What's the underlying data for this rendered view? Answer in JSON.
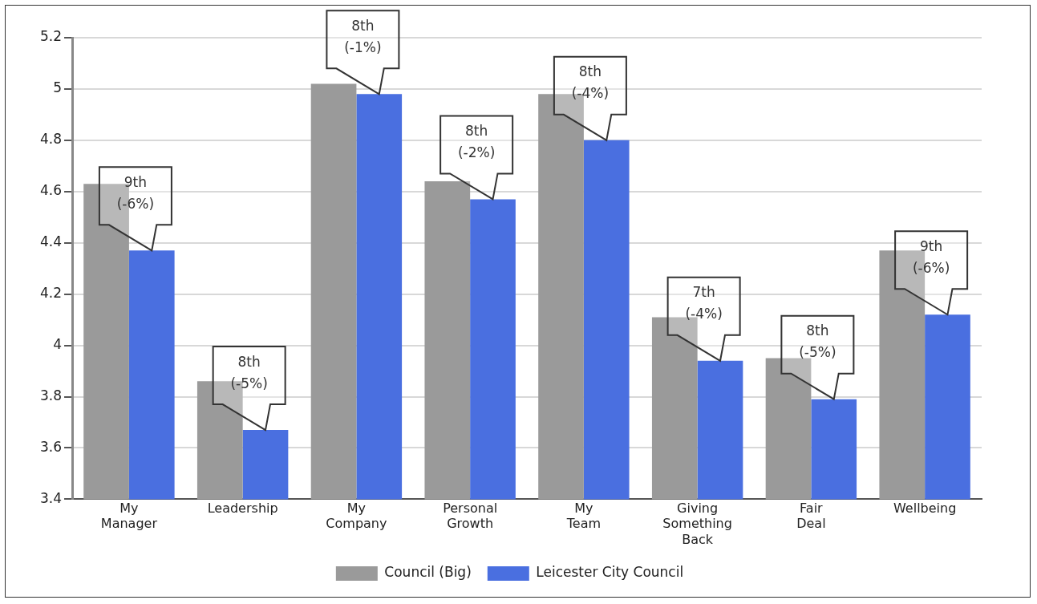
{
  "chart_data": {
    "type": "bar",
    "categories": [
      "My Manager",
      "Leadership",
      "My Company",
      "Personal Growth",
      "My Team",
      "Giving Something Back",
      "Fair Deal",
      "Wellbeing"
    ],
    "series": [
      {
        "name": "Council (Big)",
        "color": "#9a9a9a",
        "values": [
          4.63,
          3.86,
          5.02,
          4.64,
          4.98,
          4.11,
          3.95,
          4.37
        ]
      },
      {
        "name": "Leicester City Council",
        "color": "#4a6fe0",
        "values": [
          4.37,
          3.67,
          4.98,
          4.57,
          4.8,
          3.94,
          3.79,
          4.12
        ]
      }
    ],
    "ylim": [
      3.4,
      5.2
    ],
    "yticks": [
      3.4,
      3.6,
      3.8,
      4,
      4.2,
      4.4,
      4.6,
      4.8,
      5,
      5.2
    ],
    "grid": "y",
    "legend": "bottom",
    "annotations": [
      {
        "text": "9th (-6%)",
        "x": "My Manager",
        "y": 4.37
      },
      {
        "text": "8th (-5%)",
        "x": "Leadership",
        "y": 3.67
      },
      {
        "text": "8th (-1%)",
        "x": "My Company",
        "y": 4.98
      },
      {
        "text": "8th (-2%)",
        "x": "Personal Growth",
        "y": 4.57
      },
      {
        "text": "8th (-4%)",
        "x": "My Team",
        "y": 4.8
      },
      {
        "text": "7th (-4%)",
        "x": "Giving Something Back",
        "y": 3.94
      },
      {
        "text": "8th (-5%)",
        "x": "Fair Deal",
        "y": 3.79
      },
      {
        "text": "9th (-6%)",
        "x": "Wellbeing",
        "y": 4.12
      }
    ]
  }
}
